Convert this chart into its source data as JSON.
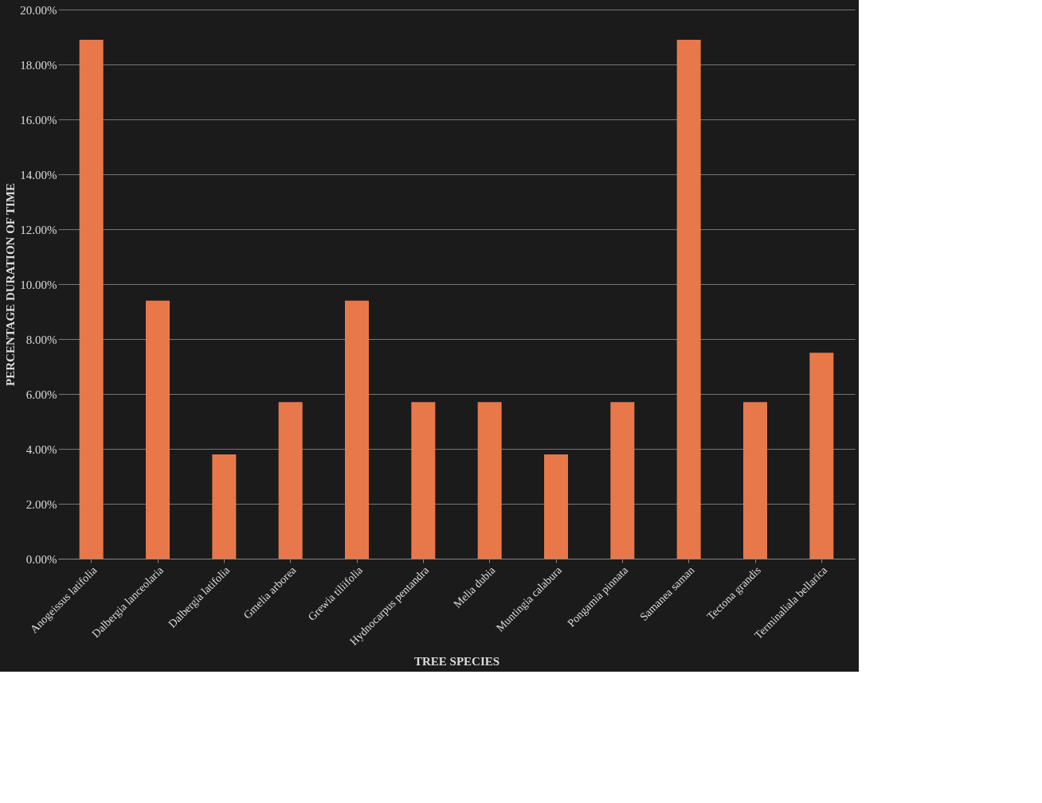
{
  "chart_data": {
    "type": "bar",
    "xlabel": "TREE SPECIES",
    "ylabel": "PERCENTAGE DURATION OF TIME",
    "categories": [
      "Anogeissus latifolia",
      "Dalbergia lanceolaria",
      "Dalbergia latifolia",
      "Gmelia arborea",
      "Grewia tiliifolia",
      "Hydnocarpus pentandra",
      "Melia dubia",
      "Muntingia calabura",
      "Pongamia pinnata",
      "Samanea saman",
      "Tectona grandis",
      "Terminaliala bellarica"
    ],
    "values": [
      18.9,
      9.4,
      3.8,
      5.7,
      9.4,
      5.7,
      5.7,
      3.8,
      5.7,
      18.9,
      5.7,
      7.5
    ],
    "color": "#e8784a",
    "ylim": [
      0,
      20
    ],
    "yticks": [
      {
        "value": 0,
        "label": "0.00%"
      },
      {
        "value": 2,
        "label": "2.00%"
      },
      {
        "value": 4,
        "label": "4.00%"
      },
      {
        "value": 6,
        "label": "6.00%"
      },
      {
        "value": 8,
        "label": "8.00%"
      },
      {
        "value": 10,
        "label": "10.00%"
      },
      {
        "value": 12,
        "label": "12.00%"
      },
      {
        "value": 14,
        "label": "14.00%"
      },
      {
        "value": 16,
        "label": "16.00%"
      },
      {
        "value": 18,
        "label": "18.00%"
      },
      {
        "value": 20,
        "label": "20.00%"
      }
    ],
    "grid": "y"
  }
}
